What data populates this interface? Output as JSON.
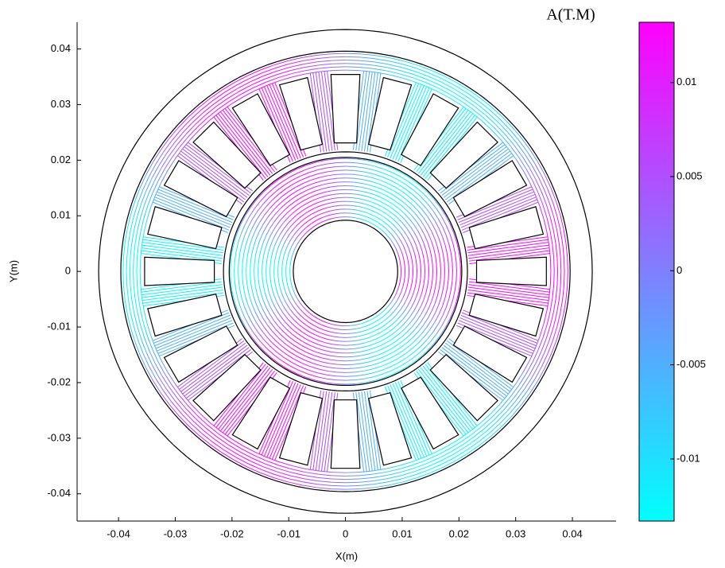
{
  "chart_data": {
    "type": "contour",
    "title": "A(T.M)",
    "x_label": "X(m)",
    "y_label": "Y(m)",
    "xlim": [
      -0.0473,
      0.0477
    ],
    "ylim": [
      -0.0449,
      0.0448
    ],
    "xticks": [
      -0.04,
      -0.03,
      -0.02,
      -0.01,
      0,
      0.01,
      0.02,
      0.03,
      0.04
    ],
    "yticks": [
      -0.04,
      -0.03,
      -0.02,
      -0.01,
      0,
      0.01,
      0.02,
      0.03,
      0.04
    ],
    "colorbar": {
      "lim": [
        -0.0133,
        0.0132
      ],
      "ticks": [
        -0.01,
        -0.005,
        0,
        0.005,
        0.01
      ],
      "colors": [
        "#00ffff",
        "#ff00ff"
      ]
    }
  }
}
